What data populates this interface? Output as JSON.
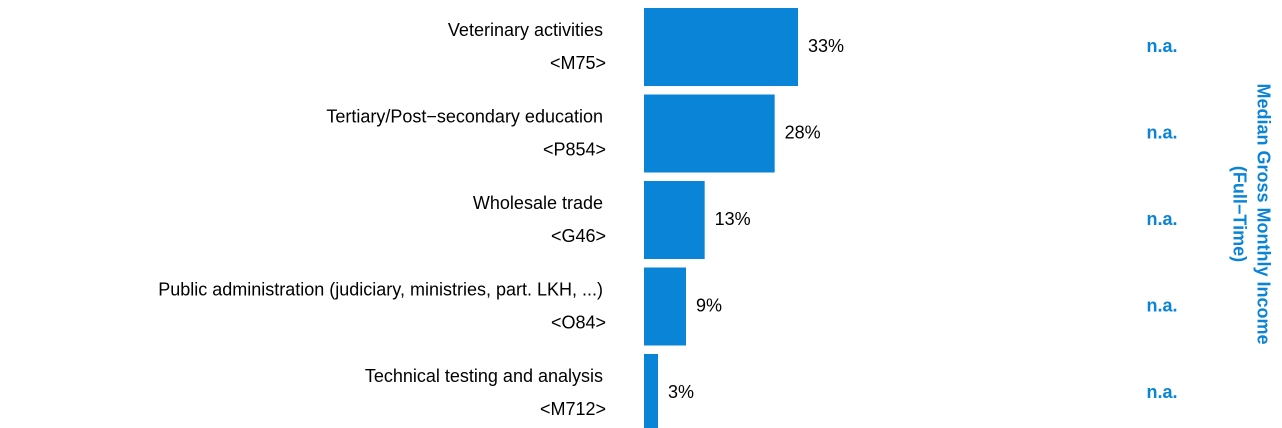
{
  "chart_data": {
    "type": "bar",
    "categories": [
      "Veterinary activities",
      "Tertiary/Post−secondary education",
      "Wholesale trade",
      "Public administration (judiciary, ministries, part. LKH, ...)",
      "Technical testing and analysis"
    ],
    "codes": [
      "<M75>",
      "<P854>",
      "<G46>",
      "<O84>",
      "<M712>"
    ],
    "values": [
      33,
      28,
      13,
      9,
      3
    ],
    "value_labels": [
      "33%",
      "28%",
      "13%",
      "9%",
      "3%"
    ],
    "color": "#0a84d6",
    "income_labels": [
      "n.a.",
      "n.a.",
      "n.a.",
      "n.a.",
      "n.a."
    ],
    "income_title": [
      "Median Gross Monthly Income",
      "(Full−Time)"
    ]
  }
}
